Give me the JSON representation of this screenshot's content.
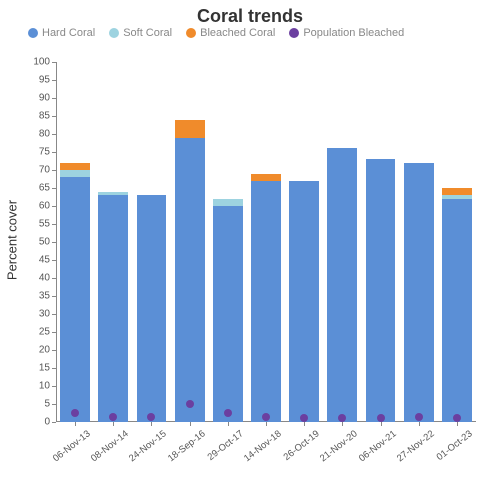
{
  "chart": {
    "title": "Coral trends",
    "title_fontsize": 18,
    "title_color": "#333333",
    "ylabel": "Percent cover",
    "ylabel_fontsize": 13,
    "legend_fontsize": 11,
    "axis_tick_fontsize": 10,
    "background_color": "#ffffff",
    "axis_color": "#888888",
    "series": [
      {
        "key": "hard",
        "label": "Hard Coral",
        "color": "#5b8fd6",
        "type": "bar"
      },
      {
        "key": "soft",
        "label": "Soft Coral",
        "color": "#9dd3e0",
        "type": "bar"
      },
      {
        "key": "bleached",
        "label": "Bleached Coral",
        "color": "#f08b2b",
        "type": "bar"
      },
      {
        "key": "pop",
        "label": "Population Bleached",
        "color": "#6b3fa0",
        "type": "dot"
      }
    ],
    "y": {
      "min": 0,
      "max": 100,
      "step": 5
    },
    "bar_width_ratio": 0.78,
    "dot_radius": 4,
    "categories": [
      "06-Nov-13",
      "08-Nov-14",
      "24-Nov-15",
      "18-Sep-16",
      "29-Oct-17",
      "14-Nov-18",
      "26-Oct-19",
      "21-Nov-20",
      "06-Nov-21",
      "27-Nov-22",
      "01-Oct-23"
    ],
    "data": [
      {
        "hard": 68,
        "soft": 2,
        "bleached": 2,
        "pop": 2.5
      },
      {
        "hard": 63,
        "soft": 1,
        "bleached": 0,
        "pop": 1.5
      },
      {
        "hard": 63,
        "soft": 0,
        "bleached": 0,
        "pop": 1.5
      },
      {
        "hard": 79,
        "soft": 0,
        "bleached": 5,
        "pop": 5
      },
      {
        "hard": 60,
        "soft": 2,
        "bleached": 0,
        "pop": 2.5
      },
      {
        "hard": 67,
        "soft": 0,
        "bleached": 2,
        "pop": 1.5
      },
      {
        "hard": 67,
        "soft": 0,
        "bleached": 0,
        "pop": 1
      },
      {
        "hard": 76,
        "soft": 0,
        "bleached": 0,
        "pop": 1
      },
      {
        "hard": 73,
        "soft": 0,
        "bleached": 0,
        "pop": 1
      },
      {
        "hard": 72,
        "soft": 0,
        "bleached": 0,
        "pop": 1.5
      },
      {
        "hard": 62,
        "soft": 1,
        "bleached": 2,
        "pop": 1
      }
    ]
  }
}
